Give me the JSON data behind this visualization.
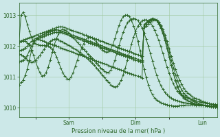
{
  "bg_color": "#cce8e8",
  "plot_bg_color": "#cce8e8",
  "line_color": "#2d6628",
  "grid_color": "#a0c8a0",
  "xlabel": "Pression niveau de la mer( hPa )",
  "ylim": [
    1009.7,
    1013.4
  ],
  "yticks": [
    1010,
    1011,
    1012,
    1013
  ],
  "xtick_labels": [
    "",
    "Sam",
    "",
    "Dim",
    "",
    "Lun"
  ],
  "xtick_positions": [
    8,
    24,
    40,
    56,
    72,
    88
  ],
  "total_points": 96,
  "figsize": [
    3.2,
    2.0
  ],
  "dpi": 100,
  "series": [
    [
      1010.75,
      1010.82,
      1010.9,
      1011.05,
      1011.25,
      1011.55,
      1011.85,
      1012.1,
      1012.2,
      1012.22,
      1012.2,
      1012.18,
      1012.15,
      1012.12,
      1012.1,
      1012.08,
      1012.05,
      1012.02,
      1012.0,
      1011.98,
      1011.95,
      1011.92,
      1011.9,
      1011.87,
      1011.85,
      1011.82,
      1011.8,
      1011.77,
      1011.75,
      1011.72,
      1011.7,
      1011.67,
      1011.65,
      1011.62,
      1011.6,
      1011.57,
      1011.55,
      1011.52,
      1011.5,
      1011.47,
      1011.45,
      1011.42,
      1011.4,
      1011.37,
      1011.35,
      1011.32,
      1011.3,
      1011.27,
      1011.25,
      1011.22,
      1011.2,
      1011.17,
      1011.15,
      1011.12,
      1011.1,
      1011.07,
      1011.05,
      1011.02,
      1011.0,
      1010.97,
      1012.7,
      1012.75,
      1012.8,
      1012.85,
      1012.9,
      1012.88,
      1012.82,
      1012.72,
      1012.58,
      1012.4,
      1012.18,
      1011.92,
      1011.65,
      1011.38,
      1011.12,
      1010.88,
      1010.68,
      1010.52,
      1010.4,
      1010.32,
      1010.27,
      1010.23,
      1010.2,
      1010.17,
      1010.15,
      1010.13,
      1010.11,
      1010.1,
      1010.09,
      1010.08,
      1010.07,
      1010.06,
      1010.05,
      1010.04,
      1010.03,
      1010.02
    ],
    [
      1011.5,
      1011.52,
      1011.55,
      1011.6,
      1011.7,
      1011.85,
      1012.0,
      1012.12,
      1012.2,
      1012.25,
      1012.28,
      1012.3,
      1012.32,
      1012.35,
      1012.38,
      1012.4,
      1012.42,
      1012.44,
      1012.45,
      1012.45,
      1012.44,
      1012.42,
      1012.4,
      1012.38,
      1012.35,
      1012.32,
      1012.3,
      1012.27,
      1012.25,
      1012.22,
      1012.2,
      1012.17,
      1012.15,
      1012.12,
      1012.1,
      1012.07,
      1012.05,
      1012.02,
      1012.0,
      1011.97,
      1011.95,
      1011.92,
      1011.9,
      1011.87,
      1011.85,
      1011.82,
      1011.8,
      1011.77,
      1011.75,
      1011.72,
      1011.7,
      1011.67,
      1011.65,
      1011.62,
      1011.6,
      1011.57,
      1011.55,
      1011.52,
      1011.5,
      1011.47,
      1012.7,
      1012.76,
      1012.82,
      1012.87,
      1012.9,
      1012.88,
      1012.82,
      1012.72,
      1012.58,
      1012.4,
      1012.18,
      1011.92,
      1011.65,
      1011.38,
      1011.12,
      1010.9,
      1010.7,
      1010.54,
      1010.42,
      1010.34,
      1010.28,
      1010.24,
      1010.2,
      1010.17,
      1010.14,
      1010.12,
      1010.1,
      1010.09,
      1010.08,
      1010.07,
      1010.06,
      1010.05,
      1010.04,
      1010.03,
      1010.02,
      1010.01
    ],
    [
      1011.85,
      1011.87,
      1011.9,
      1011.95,
      1012.0,
      1012.08,
      1012.15,
      1012.2,
      1012.25,
      1012.28,
      1012.32,
      1012.35,
      1012.38,
      1012.42,
      1012.45,
      1012.48,
      1012.5,
      1012.52,
      1012.53,
      1012.52,
      1012.5,
      1012.48,
      1012.45,
      1012.42,
      1012.4,
      1012.37,
      1012.35,
      1012.32,
      1012.3,
      1012.27,
      1012.25,
      1012.22,
      1012.2,
      1012.17,
      1012.15,
      1012.12,
      1012.1,
      1012.07,
      1012.05,
      1012.02,
      1012.0,
      1011.97,
      1011.95,
      1011.92,
      1011.9,
      1011.87,
      1011.85,
      1011.82,
      1011.8,
      1011.77,
      1011.75,
      1011.72,
      1011.7,
      1011.67,
      1011.65,
      1011.62,
      1011.6,
      1011.57,
      1011.55,
      1011.52,
      1012.65,
      1012.72,
      1012.78,
      1012.83,
      1012.87,
      1012.88,
      1012.84,
      1012.76,
      1012.64,
      1012.48,
      1012.28,
      1012.05,
      1011.8,
      1011.54,
      1011.3,
      1011.08,
      1010.88,
      1010.72,
      1010.58,
      1010.48,
      1010.4,
      1010.35,
      1010.3,
      1010.25,
      1010.21,
      1010.18,
      1010.15,
      1010.12,
      1010.1,
      1010.09,
      1010.08,
      1010.07,
      1010.06,
      1010.05,
      1010.04,
      1010.03
    ],
    [
      1012.15,
      1012.17,
      1012.2,
      1012.22,
      1012.25,
      1012.28,
      1012.3,
      1012.32,
      1012.35,
      1012.37,
      1012.4,
      1012.42,
      1012.45,
      1012.47,
      1012.5,
      1012.52,
      1012.55,
      1012.57,
      1012.6,
      1012.62,
      1012.63,
      1012.62,
      1012.6,
      1012.57,
      1012.55,
      1012.52,
      1012.5,
      1012.47,
      1012.45,
      1012.42,
      1012.4,
      1012.37,
      1012.35,
      1012.32,
      1012.3,
      1012.27,
      1012.25,
      1012.22,
      1012.2,
      1012.17,
      1012.15,
      1012.12,
      1012.1,
      1012.07,
      1012.05,
      1012.02,
      1012.0,
      1011.97,
      1011.95,
      1011.92,
      1011.9,
      1011.87,
      1011.85,
      1011.82,
      1011.8,
      1011.77,
      1011.75,
      1011.72,
      1011.7,
      1011.67,
      1012.6,
      1012.66,
      1012.72,
      1012.77,
      1012.82,
      1012.85,
      1012.84,
      1012.78,
      1012.68,
      1012.54,
      1012.36,
      1012.15,
      1011.92,
      1011.68,
      1011.46,
      1011.25,
      1011.06,
      1010.9,
      1010.76,
      1010.64,
      1010.55,
      1010.48,
      1010.42,
      1010.37,
      1010.33,
      1010.3,
      1010.27,
      1010.24,
      1010.21,
      1010.18,
      1010.16,
      1010.14,
      1010.12,
      1010.11,
      1010.1,
      1010.09
    ],
    [
      1011.75,
      1011.72,
      1011.68,
      1011.62,
      1011.55,
      1011.5,
      1011.48,
      1011.5,
      1011.55,
      1011.62,
      1011.7,
      1011.8,
      1011.9,
      1012.0,
      1012.08,
      1012.15,
      1012.2,
      1012.22,
      1012.22,
      1012.2,
      1012.17,
      1012.14,
      1012.1,
      1012.06,
      1012.02,
      1011.98,
      1011.94,
      1011.9,
      1011.85,
      1011.8,
      1011.75,
      1011.7,
      1011.64,
      1011.58,
      1011.52,
      1011.45,
      1011.38,
      1011.3,
      1011.22,
      1011.14,
      1011.06,
      1010.98,
      1010.9,
      1010.82,
      1010.75,
      1010.7,
      1010.68,
      1010.7,
      1010.78,
      1010.9,
      1011.08,
      1011.3,
      1011.55,
      1011.82,
      1012.08,
      1012.3,
      1012.5,
      1012.65,
      1012.75,
      1012.82,
      1012.85,
      1012.85,
      1012.82,
      1012.75,
      1012.65,
      1012.52,
      1012.36,
      1012.18,
      1011.98,
      1011.76,
      1011.54,
      1011.32,
      1011.12,
      1010.94,
      1010.78,
      1010.65,
      1010.55,
      1010.47,
      1010.42,
      1010.38,
      1010.35,
      1010.33,
      1010.3,
      1010.28,
      1010.25,
      1010.22,
      1010.2,
      1010.18,
      1010.17,
      1010.16,
      1010.15,
      1010.14,
      1010.13,
      1010.12,
      1010.11,
      1010.1
    ],
    [
      1012.12,
      1012.15,
      1012.17,
      1012.15,
      1012.1,
      1012.02,
      1011.88,
      1011.7,
      1011.5,
      1011.3,
      1011.14,
      1011.04,
      1011.05,
      1011.15,
      1011.32,
      1011.55,
      1011.8,
      1012.05,
      1012.25,
      1012.4,
      1012.5,
      1012.55,
      1012.52,
      1012.48,
      1012.42,
      1012.35,
      1012.28,
      1012.2,
      1012.12,
      1012.05,
      1011.97,
      1011.9,
      1011.82,
      1011.75,
      1011.68,
      1011.6,
      1011.53,
      1011.45,
      1011.38,
      1011.3,
      1011.24,
      1011.18,
      1011.15,
      1011.15,
      1011.22,
      1011.35,
      1011.55,
      1011.78,
      1012.02,
      1012.25,
      1012.45,
      1012.62,
      1012.75,
      1012.83,
      1012.88,
      1012.9,
      1012.88,
      1012.82,
      1012.72,
      1012.58,
      1012.42,
      1012.22,
      1012.0,
      1011.76,
      1011.52,
      1011.28,
      1011.06,
      1010.88,
      1010.72,
      1010.6,
      1010.5,
      1010.42,
      1010.36,
      1010.32,
      1010.28,
      1010.25,
      1010.23,
      1010.21,
      1010.19,
      1010.17,
      1010.16,
      1010.15,
      1010.14,
      1010.13,
      1010.12,
      1010.11,
      1010.1,
      1010.09,
      1010.08,
      1010.08,
      1010.07,
      1010.07,
      1010.06,
      1010.06,
      1010.05,
      1010.05
    ],
    [
      1012.12,
      1013.0,
      1013.1,
      1012.95,
      1012.7,
      1012.48,
      1012.28,
      1012.15,
      1012.08,
      1012.05,
      1012.03,
      1012.02,
      1012.02,
      1012.02,
      1012.0,
      1011.97,
      1011.9,
      1011.8,
      1011.65,
      1011.48,
      1011.3,
      1011.14,
      1011.02,
      1010.95,
      1010.92,
      1011.0,
      1011.15,
      1011.35,
      1011.55,
      1011.75,
      1011.92,
      1012.08,
      1012.2,
      1012.28,
      1012.3,
      1012.28,
      1012.22,
      1012.14,
      1012.04,
      1011.95,
      1011.88,
      1011.82,
      1011.8,
      1011.82,
      1011.9,
      1012.05,
      1012.25,
      1012.48,
      1012.68,
      1012.85,
      1012.95,
      1013.0,
      1013.0,
      1012.95,
      1012.82,
      1012.65,
      1012.42,
      1012.15,
      1011.85,
      1011.55,
      1011.25,
      1010.98,
      1010.75,
      1010.56,
      1010.42,
      1010.32,
      1010.25,
      1010.2,
      1010.17,
      1010.14,
      1010.12,
      1010.1,
      1010.08,
      1010.07,
      1010.06,
      1010.06,
      1010.06,
      1010.07,
      1010.08,
      1010.08,
      1010.09,
      1010.09,
      1010.09,
      1010.09,
      1010.09,
      1010.08,
      1010.08,
      1010.07,
      1010.07,
      1010.07,
      1010.07,
      1010.07,
      1010.07,
      1010.07,
      1010.07,
      1010.07
    ]
  ]
}
